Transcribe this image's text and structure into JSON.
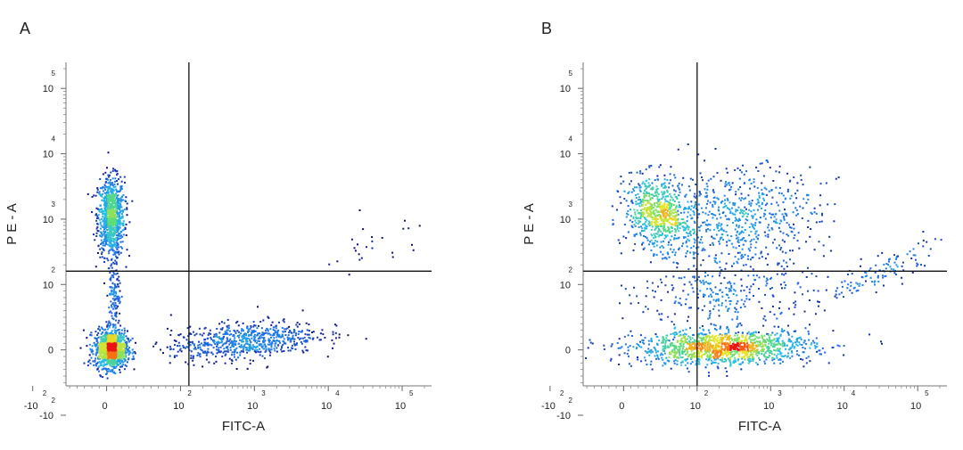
{
  "chart_data": [
    {
      "type": "scatter",
      "panel_label": "A",
      "xlabel": "FITC-A",
      "ylabel": "P E - A",
      "xlim": [
        -20,
        250000
      ],
      "ylim": [
        -20,
        250000
      ],
      "x_ticks": [
        {
          "base": "-10",
          "exp": "2",
          "value": -100
        },
        {
          "base": "0",
          "exp": "",
          "value": 0
        },
        {
          "base": "10",
          "exp": "2",
          "value": 100
        },
        {
          "base": "10",
          "exp": "3",
          "value": 1000
        },
        {
          "base": "10",
          "exp": "4",
          "value": 10000
        },
        {
          "base": "10",
          "exp": "5",
          "value": 100000
        }
      ],
      "y_ticks": [
        {
          "base": "-10",
          "exp": "2",
          "value": -100
        },
        {
          "base": "0",
          "exp": "",
          "value": 0
        },
        {
          "base": "10",
          "exp": "2",
          "value": 100
        },
        {
          "base": "10",
          "exp": "3",
          "value": 1000
        },
        {
          "base": "10",
          "exp": "4",
          "value": 10000
        },
        {
          "base": "10",
          "exp": "5",
          "value": 100000
        }
      ],
      "quadrant_gate": {
        "x": 130,
        "y": 160
      },
      "populations": [
        {
          "name": "PE-positive FITC-negative",
          "center": [
            5,
            1500
          ],
          "count": 900
        },
        {
          "name": "double-negative",
          "center": [
            5,
            5
          ],
          "count": 1100
        },
        {
          "name": "FITC-positive PE-negative tail",
          "center": [
            700,
            20
          ],
          "count": 700
        },
        {
          "name": "sparse double-positive",
          "center": [
            20000,
            300
          ],
          "count": 25
        }
      ]
    },
    {
      "type": "scatter",
      "panel_label": "B",
      "xlabel": "FITC-A",
      "ylabel": "P E - A",
      "xlim": [
        -20,
        250000
      ],
      "ylim": [
        -20,
        250000
      ],
      "x_ticks": [
        {
          "base": "-10",
          "exp": "2",
          "value": -100
        },
        {
          "base": "0",
          "exp": "",
          "value": 0
        },
        {
          "base": "10",
          "exp": "2",
          "value": 100
        },
        {
          "base": "10",
          "exp": "3",
          "value": 1000
        },
        {
          "base": "10",
          "exp": "4",
          "value": 10000
        },
        {
          "base": "10",
          "exp": "5",
          "value": 100000
        }
      ],
      "y_ticks": [
        {
          "base": "-10",
          "exp": "2",
          "value": -100
        },
        {
          "base": "0",
          "exp": "",
          "value": 0
        },
        {
          "base": "10",
          "exp": "2",
          "value": 100
        },
        {
          "base": "10",
          "exp": "3",
          "value": 1000
        },
        {
          "base": "10",
          "exp": "4",
          "value": 10000
        },
        {
          "base": "10",
          "exp": "5",
          "value": 100000
        }
      ],
      "quadrant_gate": {
        "x": 100,
        "y": 160
      },
      "populations": [
        {
          "name": "PE-positive FITC-low",
          "center": [
            40,
            1500
          ],
          "count": 700
        },
        {
          "name": "double-positive",
          "center": [
            800,
            1200
          ],
          "count": 650
        },
        {
          "name": "PE-negative FITC-spread",
          "center": [
            400,
            5
          ],
          "count": 1300
        },
        {
          "name": "diagonal tail",
          "center": [
            20000,
            300
          ],
          "count": 120
        }
      ]
    }
  ]
}
